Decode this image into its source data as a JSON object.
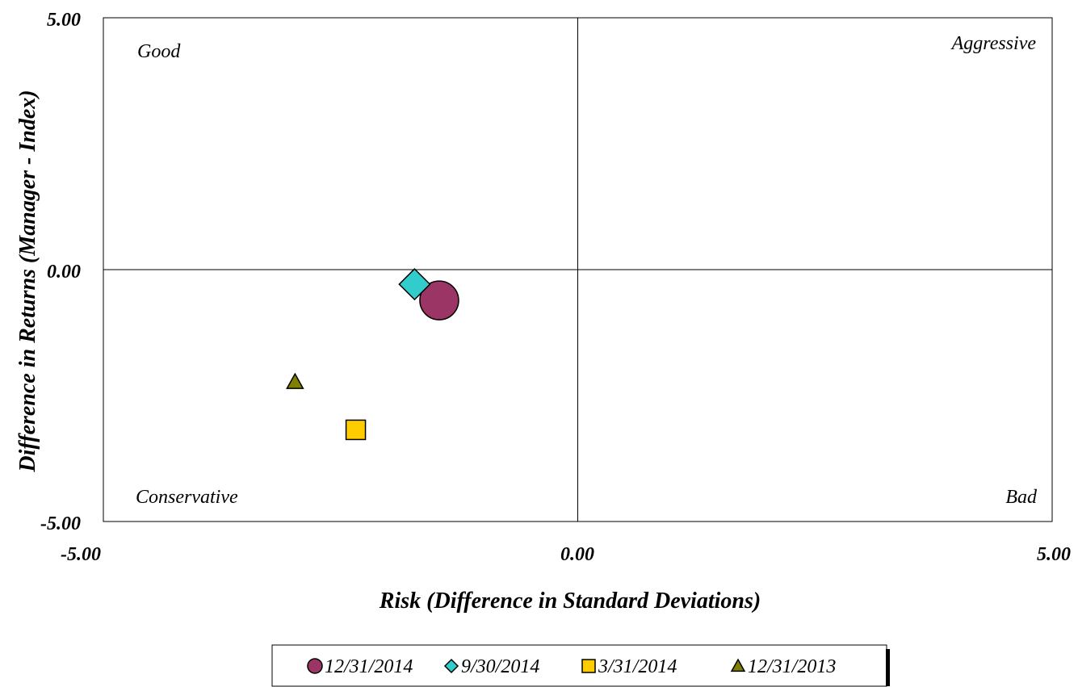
{
  "chart_data": {
    "type": "scatter",
    "title": "",
    "xlabel": "Risk (Difference in Standard Deviations)",
    "ylabel": "Difference in Returns (Manager - Index)",
    "xlim": [
      -5,
      5
    ],
    "ylim": [
      -5,
      5
    ],
    "x_ticks": [
      "-5.00",
      "0.00",
      "5.00"
    ],
    "y_ticks": [
      "-5.00",
      "0.00",
      "5.00"
    ],
    "quadrant_labels": {
      "top_left": "Good",
      "top_right": "Aggressive",
      "bottom_left": "Conservative",
      "bottom_right": "Bad"
    },
    "grid": false,
    "legend_position": "bottom",
    "series": [
      {
        "name": "12/31/2014",
        "marker": "circle",
        "color": "#9B3565",
        "x": -1.46,
        "y": -0.61
      },
      {
        "name": "9/30/2014",
        "marker": "diamond",
        "color": "#33CCCC",
        "x": -1.72,
        "y": -0.29
      },
      {
        "name": "3/31/2014",
        "marker": "square",
        "color": "#FFCC00",
        "x": -2.34,
        "y": -3.18
      },
      {
        "name": "12/31/2013",
        "marker": "triangle",
        "color": "#808000",
        "x": -2.98,
        "y": -2.23
      }
    ]
  }
}
